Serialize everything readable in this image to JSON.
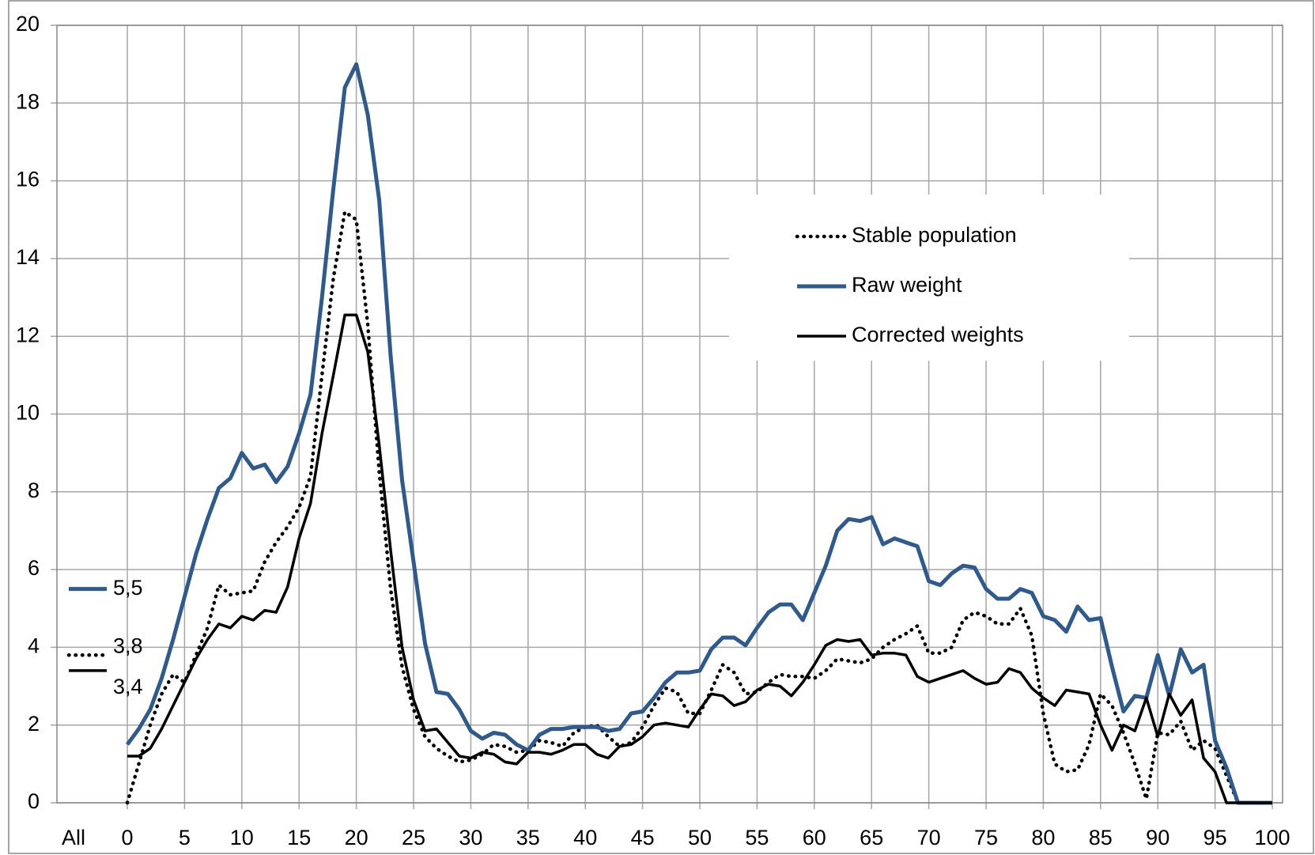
{
  "chart_data": {
    "type": "line",
    "x": [
      0,
      1,
      2,
      3,
      4,
      5,
      6,
      7,
      8,
      9,
      10,
      11,
      12,
      13,
      14,
      15,
      16,
      17,
      18,
      19,
      20,
      21,
      22,
      23,
      24,
      25,
      26,
      27,
      28,
      29,
      30,
      31,
      32,
      33,
      34,
      35,
      36,
      37,
      38,
      39,
      40,
      41,
      42,
      43,
      44,
      45,
      46,
      47,
      48,
      49,
      50,
      51,
      52,
      53,
      54,
      55,
      56,
      57,
      58,
      59,
      60,
      61,
      62,
      63,
      64,
      65,
      66,
      67,
      68,
      69,
      70,
      71,
      72,
      73,
      74,
      75,
      76,
      77,
      78,
      79,
      80,
      81,
      82,
      83,
      84,
      85,
      86,
      87,
      88,
      89,
      90,
      91,
      92,
      93,
      94,
      95,
      96,
      97,
      98,
      99,
      100
    ],
    "all_category": "All",
    "xlim": [
      0,
      100
    ],
    "xticks": [
      0,
      5,
      10,
      15,
      20,
      25,
      30,
      35,
      40,
      45,
      50,
      55,
      60,
      65,
      70,
      75,
      80,
      85,
      90,
      95,
      100
    ],
    "ylim": [
      0,
      20
    ],
    "yticks": [
      0,
      2,
      4,
      6,
      8,
      10,
      12,
      14,
      16,
      18,
      20
    ],
    "grid": true,
    "legend": "upper right",
    "series": [
      {
        "name": "Stable population",
        "color": "#000000",
        "dash": "dotted",
        "all_value": 3.8,
        "all_value_label": "3,8",
        "values": [
          0,
          1.0,
          2.0,
          2.8,
          3.3,
          3.1,
          3.8,
          4.5,
          5.6,
          5.35,
          5.4,
          5.45,
          6.2,
          6.7,
          7.1,
          7.6,
          8.4,
          11.0,
          13.5,
          15.2,
          15.0,
          12.3,
          8.5,
          5.5,
          3.5,
          2.4,
          1.7,
          1.4,
          1.2,
          1.05,
          1.1,
          1.25,
          1.5,
          1.45,
          1.3,
          1.35,
          1.6,
          1.55,
          1.45,
          1.8,
          1.95,
          2.0,
          1.7,
          1.45,
          1.55,
          1.95,
          2.5,
          2.95,
          2.85,
          2.3,
          2.3,
          2.9,
          3.55,
          3.35,
          2.8,
          2.85,
          3.1,
          3.3,
          3.25,
          3.25,
          3.2,
          3.4,
          3.7,
          3.65,
          3.6,
          3.7,
          4.0,
          4.2,
          4.35,
          4.55,
          3.85,
          3.85,
          4.0,
          4.7,
          4.9,
          4.8,
          4.6,
          4.6,
          5.0,
          4.3,
          2.3,
          1.0,
          0.8,
          0.85,
          1.5,
          2.8,
          2.5,
          1.8,
          1.0,
          0.1,
          1.8,
          1.75,
          2.1,
          1.35,
          1.6,
          1.4,
          0.7,
          0,
          0,
          0,
          0
        ]
      },
      {
        "name": "Raw weight",
        "color": "#2e5a8e",
        "dash": "solid",
        "all_value": 5.5,
        "all_value_label": "5,5",
        "values": [
          1.5,
          1.9,
          2.4,
          3.2,
          4.2,
          5.3,
          6.4,
          7.3,
          8.1,
          8.35,
          9.0,
          8.6,
          8.7,
          8.25,
          8.65,
          9.5,
          10.5,
          13.0,
          15.8,
          18.4,
          19.0,
          17.7,
          15.5,
          11.5,
          8.3,
          6.2,
          4.1,
          2.85,
          2.8,
          2.4,
          1.85,
          1.65,
          1.8,
          1.75,
          1.5,
          1.35,
          1.75,
          1.9,
          1.9,
          1.95,
          1.95,
          1.95,
          1.85,
          1.9,
          2.3,
          2.35,
          2.7,
          3.1,
          3.35,
          3.35,
          3.4,
          3.95,
          4.25,
          4.25,
          4.05,
          4.5,
          4.9,
          5.1,
          5.1,
          4.7,
          5.4,
          6.1,
          7.0,
          7.3,
          7.25,
          7.35,
          6.65,
          6.8,
          6.7,
          6.6,
          5.7,
          5.6,
          5.9,
          6.1,
          6.05,
          5.5,
          5.25,
          5.25,
          5.5,
          5.4,
          4.8,
          4.7,
          4.4,
          5.05,
          4.7,
          4.75,
          3.5,
          2.35,
          2.75,
          2.7,
          3.8,
          2.75,
          3.95,
          3.35,
          3.55,
          1.6,
          0.9,
          0,
          0,
          0,
          0
        ]
      },
      {
        "name": "Corrected weights",
        "color": "#000000",
        "dash": "solid",
        "all_value": 3.4,
        "all_value_label": "3,4",
        "values": [
          1.2,
          1.2,
          1.4,
          1.9,
          2.5,
          3.1,
          3.7,
          4.2,
          4.6,
          4.5,
          4.8,
          4.7,
          4.95,
          4.9,
          5.55,
          6.8,
          7.7,
          9.5,
          11.0,
          12.55,
          12.55,
          11.6,
          9.2,
          6.5,
          4.0,
          2.65,
          1.85,
          1.9,
          1.55,
          1.2,
          1.15,
          1.3,
          1.25,
          1.05,
          1.0,
          1.3,
          1.3,
          1.25,
          1.35,
          1.5,
          1.5,
          1.25,
          1.15,
          1.45,
          1.5,
          1.7,
          2.0,
          2.05,
          2.0,
          1.95,
          2.4,
          2.8,
          2.75,
          2.5,
          2.6,
          2.9,
          3.05,
          3.0,
          2.75,
          3.1,
          3.55,
          4.05,
          4.2,
          4.15,
          4.2,
          3.8,
          3.85,
          3.85,
          3.8,
          3.25,
          3.1,
          3.2,
          3.3,
          3.4,
          3.2,
          3.05,
          3.1,
          3.45,
          3.35,
          2.95,
          2.7,
          2.5,
          2.9,
          2.85,
          2.8,
          2.0,
          1.35,
          2.0,
          1.85,
          2.7,
          1.7,
          2.8,
          2.25,
          2.65,
          1.15,
          0.8,
          0,
          0,
          0,
          0,
          0
        ]
      }
    ]
  }
}
